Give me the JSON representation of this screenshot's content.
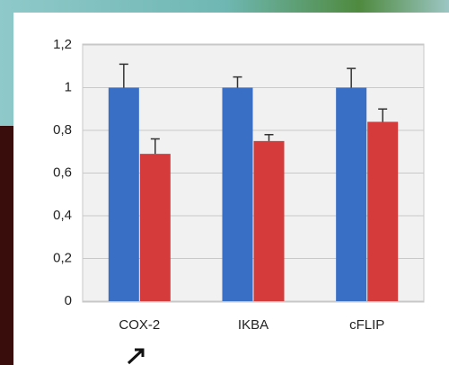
{
  "chart_data": {
    "type": "bar",
    "categories": [
      "COX-2",
      "IKBA",
      "cFLIP"
    ],
    "series": [
      {
        "color": "#3a6fc6",
        "values": [
          1,
          1,
          1
        ],
        "errors": [
          0.11,
          0.05,
          0.09
        ]
      },
      {
        "color": "#d63b3b",
        "values": [
          0.69,
          0.75,
          0.84
        ],
        "errors": [
          0.07,
          0.03,
          0.06
        ]
      }
    ],
    "ylim": [
      0,
      1.2
    ],
    "yticks": [
      0,
      {
        "value": 0.2,
        "label": "0,2"
      },
      {
        "value": 0.4,
        "label": "0,4"
      },
      {
        "value": 0.6,
        "label": "0,6"
      },
      {
        "value": 0.8,
        "label": "0,8"
      },
      1,
      {
        "value": 1.2,
        "label": "1,2"
      }
    ],
    "grid": true
  }
}
